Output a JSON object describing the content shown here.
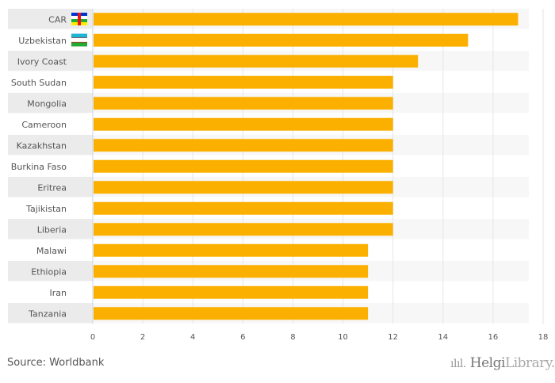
{
  "chart_data": {
    "type": "bar",
    "orientation": "horizontal",
    "categories": [
      "CAR",
      "Uzbekistan",
      "Ivory Coast",
      "South Sudan",
      "Mongolia",
      "Cameroon",
      "Kazakhstan",
      "Burkina Faso",
      "Eritrea",
      "Tajikistan",
      "Liberia",
      "Malawi",
      "Ethiopia",
      "Iran",
      "Tanzania"
    ],
    "values": [
      17,
      15,
      13,
      12,
      12,
      12,
      12,
      12,
      12,
      12,
      12,
      11,
      11,
      11,
      11
    ],
    "xlim": [
      0,
      18
    ],
    "xticks": [
      "0",
      "2",
      "4",
      "6",
      "8",
      "10",
      "12",
      "14",
      "16",
      "18"
    ],
    "grid": true,
    "bar_color": "#fbb000",
    "flags": [
      "central-african-republic-flag",
      "uzbekistan-flag"
    ]
  },
  "footer": {
    "source": "Source: Worldbank",
    "logo_bold": "Helgi",
    "logo_light": "Library."
  }
}
